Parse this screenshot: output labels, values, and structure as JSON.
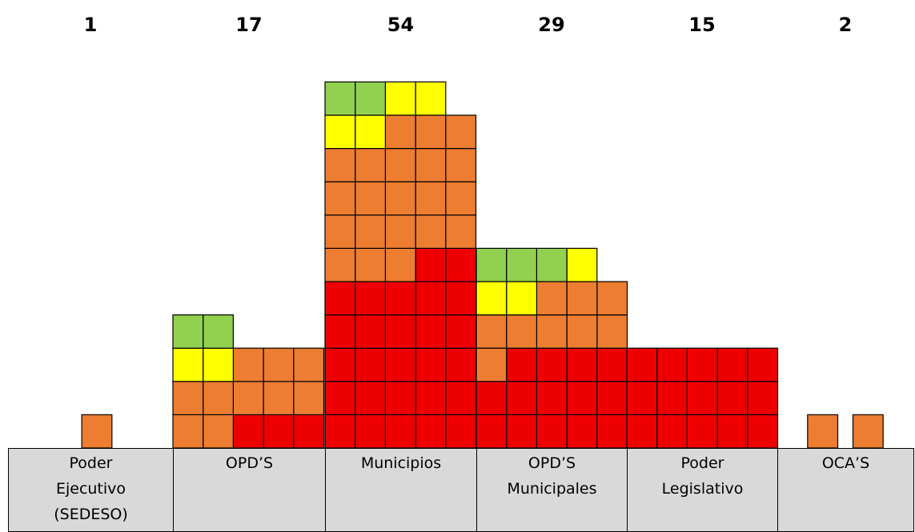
{
  "chart_data": {
    "type": "waffle",
    "categories": [
      "Poder\nEjecutivo\n(SEDESO)",
      "OPD’S",
      "Municipios",
      "OPD’S\nMunicipales",
      "Poder\nLegislativo",
      "OCA’S"
    ],
    "totals": [
      1,
      17,
      54,
      29,
      15,
      2
    ],
    "series": [
      {
        "color": "#ee0000",
        "values": [
          0,
          3,
          27,
          14,
          15,
          0
        ]
      },
      {
        "color": "#ed7d31",
        "values": [
          1,
          10,
          21,
          9,
          0,
          2
        ]
      },
      {
        "color": "#ffff00",
        "values": [
          0,
          2,
          4,
          3,
          0,
          0
        ]
      },
      {
        "color": "#92d050",
        "values": [
          0,
          2,
          2,
          3,
          0,
          0
        ]
      }
    ]
  }
}
